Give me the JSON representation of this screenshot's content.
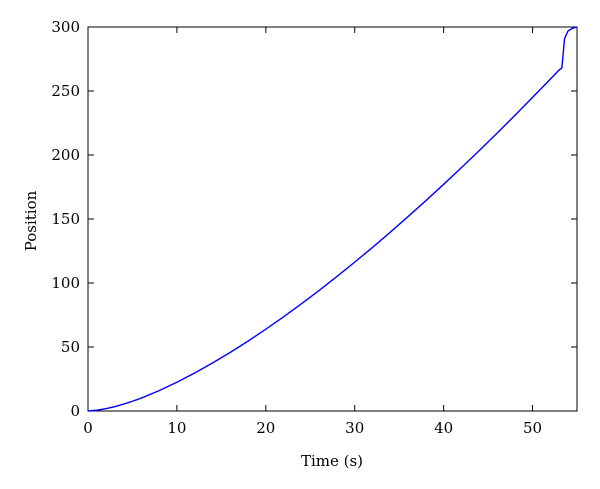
{
  "chart_data": {
    "type": "line",
    "title": "",
    "xlabel": "Time (s)",
    "ylabel": "Position",
    "xlim": [
      0,
      55
    ],
    "ylim": [
      0,
      300
    ],
    "xticks": [
      0,
      10,
      20,
      30,
      40,
      50
    ],
    "yticks": [
      0,
      50,
      100,
      150,
      200,
      250,
      300
    ],
    "xtick_labels": [
      "0",
      "10",
      "20",
      "30",
      "40",
      "50"
    ],
    "ytick_labels": [
      "0",
      "50",
      "100",
      "150",
      "200",
      "250",
      "300"
    ],
    "grid": false,
    "legend": "none",
    "series": [
      {
        "color": "#0000ff",
        "x": [
          0,
          1,
          2,
          3,
          4,
          5,
          6,
          8,
          10,
          12,
          14,
          16,
          18,
          20,
          22,
          24,
          26,
          28,
          30,
          32,
          34,
          36,
          38,
          40,
          42,
          44,
          46,
          48,
          50,
          52,
          53,
          53.3,
          53.6,
          54,
          54.5,
          55
        ],
        "y": [
          0,
          0.6,
          1.8,
          3.4,
          5.4,
          7.6,
          10.1,
          15.9,
          22.5,
          29.7,
          37.5,
          45.8,
          54.6,
          63.9,
          73.6,
          83.7,
          94.2,
          105.1,
          116.3,
          127.8,
          139.7,
          151.9,
          164.3,
          177.1,
          190.1,
          203.4,
          217.0,
          230.9,
          245.0,
          259.3,
          266.5,
          268,
          291,
          297,
          299,
          300
        ]
      }
    ]
  }
}
